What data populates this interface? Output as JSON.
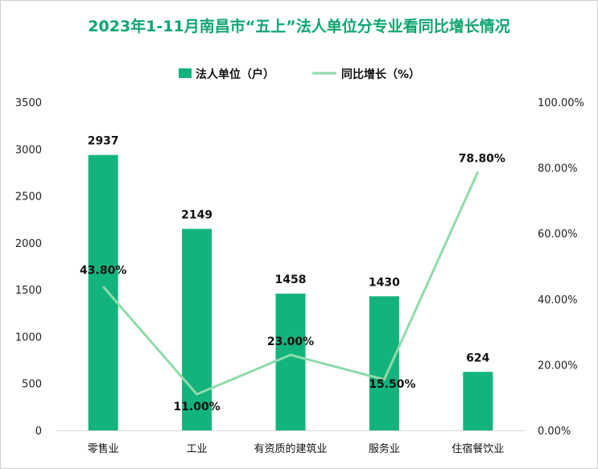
{
  "chart_data": {
    "type": "bar",
    "title": "2023年1-11月南昌市“五上”法人单位分专业看同比增长情况",
    "categories": [
      "零售业",
      "工业",
      "有资质的建筑业",
      "服务业",
      "住宿餐饮业"
    ],
    "series": [
      {
        "name": "法人单位（户）",
        "type": "bar",
        "axis": "left",
        "color": "#12b37c",
        "values": [
          2937,
          2149,
          1458,
          1430,
          624
        ],
        "labels": [
          "2937",
          "2149",
          "1458",
          "1430",
          "624"
        ]
      },
      {
        "name": "同比增长（%）",
        "type": "line",
        "axis": "right",
        "color": "#8fdbab",
        "values": [
          43.8,
          11.0,
          23.0,
          15.5,
          78.8
        ],
        "labels": [
          "43.80%",
          "11.00%",
          "23.00%",
          "15.50%",
          "78.80%"
        ]
      }
    ],
    "yleft": {
      "min": 0,
      "max": 3500,
      "ticks": [
        "0",
        "500",
        "1000",
        "1500",
        "2000",
        "2500",
        "3000",
        "3500"
      ]
    },
    "yright": {
      "min": 0,
      "max": 100,
      "ticks": [
        "0.00%",
        "20.00%",
        "40.00%",
        "60.00%",
        "80.00%",
        "100.00%"
      ]
    },
    "legend_position": "top",
    "grid": false
  }
}
